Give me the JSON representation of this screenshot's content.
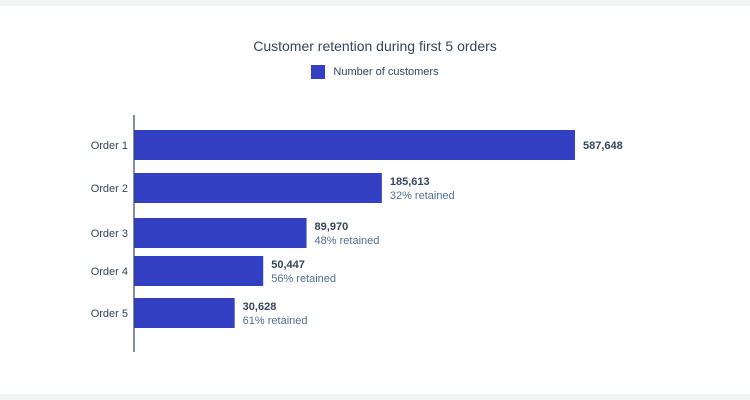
{
  "chart_data": {
    "type": "bar",
    "orientation": "horizontal",
    "title": "Customer retention during first 5 orders",
    "categories": [
      "Order 1",
      "Order 2",
      "Order 3",
      "Order 4",
      "Order 5"
    ],
    "series": [
      {
        "name": "Number of customers",
        "values": [
          587648,
          185613,
          89970,
          50447,
          30628
        ]
      }
    ],
    "value_labels": [
      "587,648",
      "185,613",
      "89,970",
      "50,447",
      "30,628"
    ],
    "retention_labels": [
      "",
      "32% retained",
      "48% retained",
      "56% retained",
      "61% retained"
    ],
    "legend_position": "top",
    "grid": false,
    "colors": {
      "bar": "#3340c4",
      "text": "#33475b",
      "subtext": "#516f90",
      "axis": "#33475b"
    }
  }
}
